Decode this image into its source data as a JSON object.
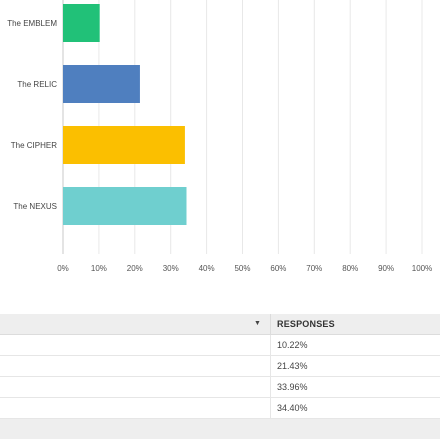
{
  "chart_data": {
    "type": "bar",
    "orientation": "horizontal",
    "categories": [
      "The EMBLEM",
      "The RELIC",
      "The CIPHER",
      "The NEXUS"
    ],
    "values": [
      10.22,
      21.43,
      33.96,
      34.4
    ],
    "colors": [
      "#21c178",
      "#4f7fbf",
      "#fbbf00",
      "#6fcfcf"
    ],
    "xlim": [
      0,
      100
    ],
    "xticks": [
      "0%",
      "10%",
      "20%",
      "30%",
      "40%",
      "50%",
      "60%",
      "70%",
      "80%",
      "90%",
      "100%"
    ],
    "grid": true
  },
  "table": {
    "header": "RESPONSES",
    "rows": [
      "10.22%",
      "21.43%",
      "33.96%",
      "34.40%"
    ]
  }
}
